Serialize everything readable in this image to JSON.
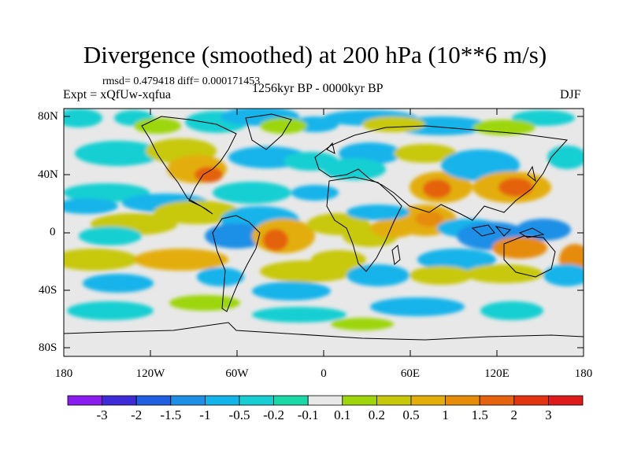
{
  "title": "Divergence (smoothed) at 200 hPa (10**6 m/s)",
  "stats": "rmsd= 0.479418 diff= 0.000171453",
  "experiment": "Expt = xQfUw-xqfua",
  "period": "1256kyr BP - 0000kyr BP",
  "season": "DJF",
  "lat_labels": [
    "80N",
    "40N",
    "0",
    "40S",
    "80S"
  ],
  "lon_labels": [
    "180",
    "120W",
    "60W",
    "0",
    "60E",
    "120E",
    "180"
  ],
  "colorbar": {
    "labels": [
      "-3",
      "-2",
      "-1.5",
      "-1",
      "-0.5",
      "-0.2",
      "-0.1",
      "0.1",
      "0.2",
      "0.5",
      "1",
      "1.5",
      "2",
      "3"
    ],
    "colors": [
      "#8a1cf0",
      "#3c2bd6",
      "#1f5fe0",
      "#1f8fe6",
      "#12b4ea",
      "#17cfd2",
      "#1ad9a6",
      "#e8e8e8",
      "#9ed60b",
      "#c8c80a",
      "#e3ae09",
      "#e68c0a",
      "#e5620e",
      "#e23410",
      "#de1b1b"
    ]
  }
}
